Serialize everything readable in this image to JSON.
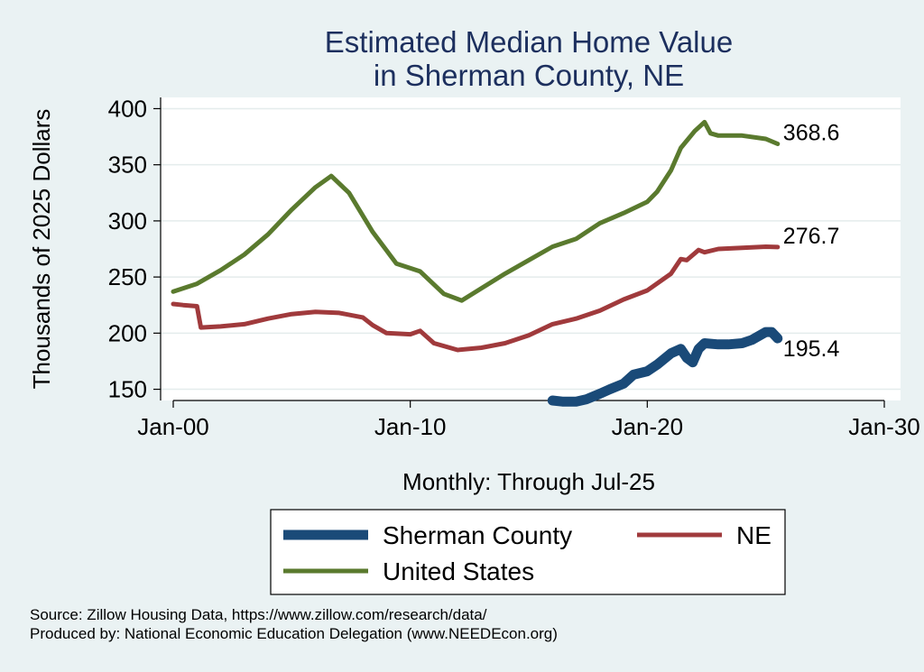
{
  "chart_data": {
    "type": "line",
    "title": [
      "Estimated Median Home Value",
      "in Sherman County, NE"
    ],
    "xlabel": "Monthly: Through Jul-25",
    "ylabel": "Thousands of 2025 Dollars",
    "x_ticks": [
      "Jan-00",
      "Jan-10",
      "Jan-20",
      "Jan-30"
    ],
    "y_ticks": [
      150,
      200,
      250,
      300,
      350,
      400
    ],
    "ylim": [
      140,
      410
    ],
    "xlim": [
      "2000-01",
      "2030-01"
    ],
    "grid": true,
    "legend_position": "bottom",
    "series": [
      {
        "name": "Sherman County",
        "color": "#1a4a78",
        "end_label": "195.4",
        "points": [
          [
            "2016-01",
            140
          ],
          [
            "2016-06",
            139
          ],
          [
            "2017-01",
            139
          ],
          [
            "2017-06",
            141
          ],
          [
            "2018-01",
            146
          ],
          [
            "2018-06",
            150
          ],
          [
            "2019-01",
            155
          ],
          [
            "2019-06",
            163
          ],
          [
            "2020-01",
            166
          ],
          [
            "2020-06",
            172
          ],
          [
            "2021-01",
            182
          ],
          [
            "2021-06",
            186
          ],
          [
            "2021-09",
            178
          ],
          [
            "2021-12",
            174
          ],
          [
            "2022-03",
            186
          ],
          [
            "2022-06",
            191
          ],
          [
            "2023-01",
            190
          ],
          [
            "2023-06",
            190
          ],
          [
            "2024-01",
            191
          ],
          [
            "2024-06",
            194
          ],
          [
            "2025-01",
            201
          ],
          [
            "2025-04",
            201
          ],
          [
            "2025-07",
            195.4
          ]
        ]
      },
      {
        "name": "NE",
        "color": "#a03a3c",
        "end_label": "276.7",
        "points": [
          [
            "2000-01",
            226
          ],
          [
            "2000-06",
            225
          ],
          [
            "2001-01",
            224
          ],
          [
            "2001-03",
            205
          ],
          [
            "2002-01",
            206
          ],
          [
            "2003-01",
            208
          ],
          [
            "2004-01",
            213
          ],
          [
            "2005-01",
            217
          ],
          [
            "2006-01",
            219
          ],
          [
            "2007-01",
            218
          ],
          [
            "2008-01",
            214
          ],
          [
            "2008-06",
            207
          ],
          [
            "2009-01",
            200
          ],
          [
            "2010-01",
            199
          ],
          [
            "2010-06",
            202
          ],
          [
            "2011-01",
            191
          ],
          [
            "2012-01",
            185
          ],
          [
            "2013-01",
            187
          ],
          [
            "2014-01",
            191
          ],
          [
            "2015-01",
            198
          ],
          [
            "2016-01",
            208
          ],
          [
            "2017-01",
            213
          ],
          [
            "2018-01",
            220
          ],
          [
            "2019-01",
            230
          ],
          [
            "2020-01",
            238
          ],
          [
            "2021-01",
            253
          ],
          [
            "2021-06",
            266
          ],
          [
            "2021-09",
            265
          ],
          [
            "2022-03",
            274
          ],
          [
            "2022-06",
            272
          ],
          [
            "2023-01",
            275
          ],
          [
            "2024-01",
            276
          ],
          [
            "2025-01",
            277
          ],
          [
            "2025-07",
            276.7
          ]
        ]
      },
      {
        "name": "United States",
        "color": "#5a7a2e",
        "end_label": "368.6",
        "points": [
          [
            "2000-01",
            237
          ],
          [
            "2001-01",
            244
          ],
          [
            "2002-01",
            256
          ],
          [
            "2003-01",
            270
          ],
          [
            "2004-01",
            288
          ],
          [
            "2005-01",
            310
          ],
          [
            "2006-01",
            330
          ],
          [
            "2006-09",
            340
          ],
          [
            "2007-06",
            325
          ],
          [
            "2008-06",
            290
          ],
          [
            "2009-06",
            262
          ],
          [
            "2010-06",
            255
          ],
          [
            "2011-06",
            235
          ],
          [
            "2012-03",
            229
          ],
          [
            "2013-01",
            240
          ],
          [
            "2014-01",
            253
          ],
          [
            "2015-01",
            265
          ],
          [
            "2016-01",
            277
          ],
          [
            "2017-01",
            284
          ],
          [
            "2018-01",
            298
          ],
          [
            "2019-01",
            307
          ],
          [
            "2020-01",
            317
          ],
          [
            "2020-06",
            326
          ],
          [
            "2021-01",
            345
          ],
          [
            "2021-06",
            365
          ],
          [
            "2022-01",
            380
          ],
          [
            "2022-06",
            388
          ],
          [
            "2022-09",
            378
          ],
          [
            "2023-01",
            376
          ],
          [
            "2024-01",
            376
          ],
          [
            "2025-01",
            373
          ],
          [
            "2025-07",
            368.6
          ]
        ]
      }
    ]
  },
  "source_line": "Source: Zillow Housing Data, https://www.zillow.com/research/data/",
  "produced_line": "Produced by: National Economic Education Delegation (www.NEEDEcon.org)"
}
